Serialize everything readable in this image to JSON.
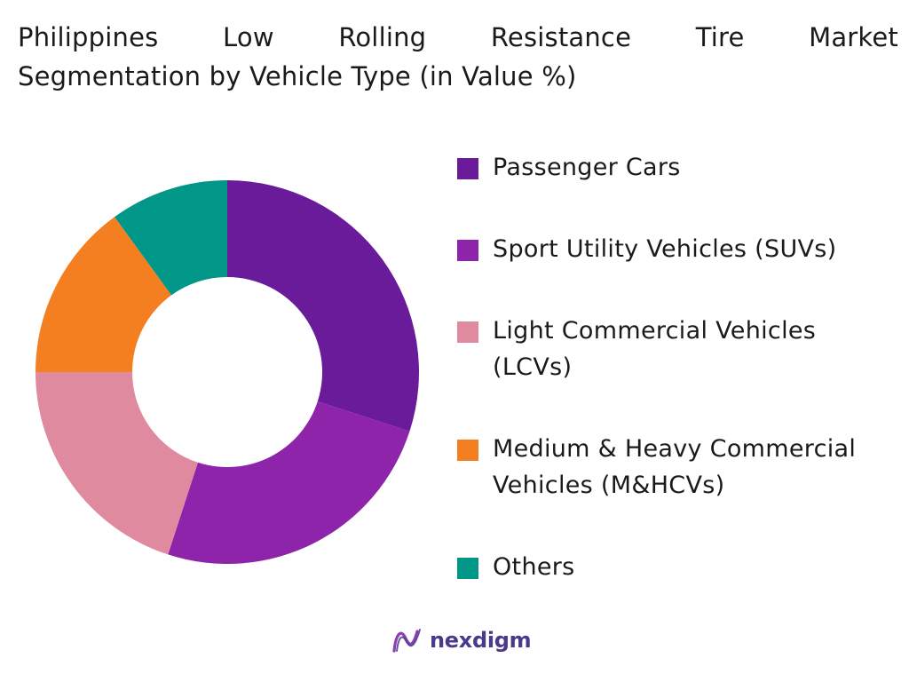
{
  "chart_data": {
    "type": "pie",
    "title": "Philippines Low Rolling Resistance Tire Market Segmentation by Vehicle Type (in Value %)",
    "title_lines": [
      "Philippines Low Rolling Resistance Tire Market",
      "Segmentation by Vehicle Type (in Value %)"
    ],
    "donut": true,
    "legend_position": "right",
    "categories": [
      "Passenger Cars",
      "Sport Utility Vehicles (SUVs)",
      "Light Commercial Vehicles (LCVs)",
      "Medium & Heavy Commercial Vehicles (M&HCVs)",
      "Others"
    ],
    "values": [
      30,
      25,
      20,
      15,
      10
    ],
    "colors": [
      "#6a1b9a",
      "#8e24aa",
      "#e08aa0",
      "#f47f20",
      "#009688"
    ]
  },
  "legend": {
    "items": [
      {
        "lines": [
          "Passenger Cars"
        ],
        "color": "#6a1b9a"
      },
      {
        "lines": [
          "Sport Utility Vehicles (SUVs)"
        ],
        "color": "#8e24aa"
      },
      {
        "lines": [
          "Light Commercial Vehicles",
          "(LCVs)"
        ],
        "color": "#e08aa0"
      },
      {
        "lines": [
          "Medium & Heavy Commercial",
          "Vehicles (M&HCVs)"
        ],
        "color": "#f47f20"
      },
      {
        "lines": [
          "Others"
        ],
        "color": "#009688"
      }
    ]
  },
  "brand": {
    "name": "nexdigm",
    "logo_icon": "nexdigm-logo-icon",
    "color": "#4b3a8c"
  }
}
